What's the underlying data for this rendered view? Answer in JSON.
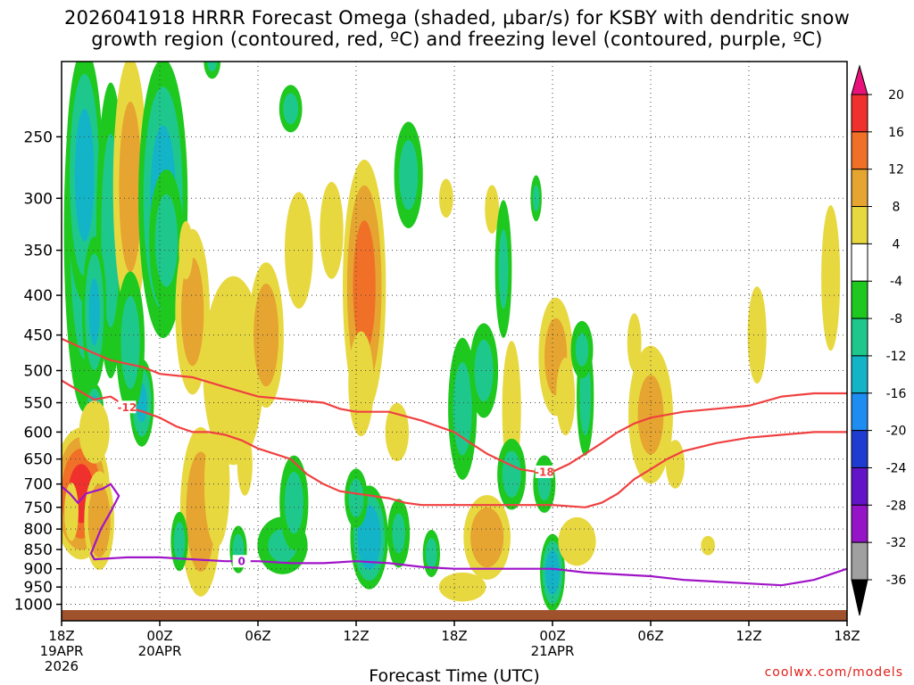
{
  "title": {
    "line1": "2026041918 HRRR Forecast Omega (shaded, µbar/s) for KSBY with dendritic snow",
    "line2": "growth region (contoured, red, ºC) and freezing level (contoured, purple, ºC)"
  },
  "credit": "coolwx.com/models",
  "chart_data": {
    "type": "heatmap",
    "xlabel": "Forecast Time (UTC)",
    "ylabel": "",
    "y_scale": "log",
    "y_inverted": true,
    "ylim": [
      1050,
      200
    ],
    "xlim": [
      0,
      48
    ],
    "x_unit": "forecast hours from 2026-04-19 18Z",
    "grid": true,
    "yticks": [
      250,
      300,
      350,
      400,
      450,
      500,
      550,
      600,
      650,
      700,
      750,
      800,
      850,
      900,
      950,
      1000
    ],
    "xticks": [
      {
        "x": 0,
        "label": "18Z",
        "line2": "19APR",
        "line3": "2026"
      },
      {
        "x": 6,
        "label": "00Z",
        "line2": "20APR",
        "line3": ""
      },
      {
        "x": 12,
        "label": "06Z",
        "line2": "",
        "line3": ""
      },
      {
        "x": 18,
        "label": "12Z",
        "line2": "",
        "line3": ""
      },
      {
        "x": 24,
        "label": "18Z",
        "line2": "",
        "line3": ""
      },
      {
        "x": 30,
        "label": "00Z",
        "line2": "21APR",
        "line3": ""
      },
      {
        "x": 36,
        "label": "06Z",
        "line2": "",
        "line3": ""
      },
      {
        "x": 42,
        "label": "12Z",
        "line2": "",
        "line3": ""
      },
      {
        "x": 48,
        "label": "18Z",
        "line2": "",
        "line3": ""
      }
    ],
    "colorbar": {
      "labels": [
        "20",
        "16",
        "12",
        "8",
        "4",
        "-4",
        "-8",
        "-12",
        "-16",
        "-20",
        "-24",
        "-28",
        "-32",
        "-36"
      ],
      "colors": [
        "#e8127a",
        "#f0302c",
        "#f07028",
        "#e6a430",
        "#e8d840",
        "#ffffff",
        "#1ec81e",
        "#1ec88c",
        "#14b4c8",
        "#1e8cf0",
        "#1e3cd2",
        "#6414c8",
        "#9614c8",
        "#a0a0a0",
        "#000000"
      ]
    },
    "omega_blobs": [
      {
        "x": 1.4,
        "p": 330,
        "sx": 0.7,
        "sy": 0.3,
        "v": -10
      },
      {
        "x": 1.4,
        "p": 280,
        "sx": 0.6,
        "sy": 0.2,
        "v": -13
      },
      {
        "x": 3.0,
        "p": 330,
        "sx": 0.5,
        "sy": 0.25,
        "v": -9
      },
      {
        "x": 4.2,
        "p": 290,
        "sx": 0.6,
        "sy": 0.22,
        "v": 9
      },
      {
        "x": 6.2,
        "p": 300,
        "sx": 0.8,
        "sy": 0.22,
        "v": -13
      },
      {
        "x": 6.4,
        "p": 340,
        "sx": 0.6,
        "sy": 0.12,
        "v": -9
      },
      {
        "x": 2.0,
        "p": 420,
        "sx": 0.4,
        "sy": 0.12,
        "v": -12
      },
      {
        "x": 2.0,
        "p": 560,
        "sx": 0.3,
        "sy": 0.04,
        "v": -13
      },
      {
        "x": 4.9,
        "p": 550,
        "sx": 0.4,
        "sy": 0.07,
        "v": -12
      },
      {
        "x": 4.2,
        "p": 460,
        "sx": 0.5,
        "sy": 0.12,
        "v": -9
      },
      {
        "x": 1.2,
        "p": 720,
        "sx": 0.9,
        "sy": 0.1,
        "v": 17
      },
      {
        "x": 2.3,
        "p": 780,
        "sx": 0.5,
        "sy": 0.08,
        "v": 11
      },
      {
        "x": 2.0,
        "p": 600,
        "sx": 0.6,
        "sy": 0.06,
        "v": 6
      },
      {
        "x": 8.0,
        "p": 420,
        "sx": 0.6,
        "sy": 0.14,
        "v": 9
      },
      {
        "x": 7.6,
        "p": 350,
        "sx": 0.3,
        "sy": 0.06,
        "v": 5
      },
      {
        "x": 8.5,
        "p": 760,
        "sx": 0.7,
        "sy": 0.14,
        "v": 10
      },
      {
        "x": 7.2,
        "p": 830,
        "sx": 0.3,
        "sy": 0.05,
        "v": -9
      },
      {
        "x": 10.5,
        "p": 500,
        "sx": 1.2,
        "sy": 0.18,
        "v": 6
      },
      {
        "x": 12.5,
        "p": 450,
        "sx": 0.6,
        "sy": 0.12,
        "v": 10
      },
      {
        "x": 14.5,
        "p": 350,
        "sx": 0.6,
        "sy": 0.12,
        "v": 5
      },
      {
        "x": 16.5,
        "p": 330,
        "sx": 0.5,
        "sy": 0.1,
        "v": 5
      },
      {
        "x": 11.2,
        "p": 660,
        "sx": 0.3,
        "sy": 0.06,
        "v": 6
      },
      {
        "x": 13.5,
        "p": 840,
        "sx": 0.9,
        "sy": 0.05,
        "v": -8
      },
      {
        "x": 10.8,
        "p": 850,
        "sx": 0.3,
        "sy": 0.04,
        "v": -9
      },
      {
        "x": 18.5,
        "p": 390,
        "sx": 0.7,
        "sy": 0.2,
        "v": 13
      },
      {
        "x": 18.3,
        "p": 520,
        "sx": 0.5,
        "sy": 0.1,
        "v": 6
      },
      {
        "x": 20.5,
        "p": 600,
        "sx": 0.5,
        "sy": 0.06,
        "v": 5
      },
      {
        "x": 21.2,
        "p": 280,
        "sx": 0.5,
        "sy": 0.09,
        "v": -9
      },
      {
        "x": 18.8,
        "p": 820,
        "sx": 0.6,
        "sy": 0.08,
        "v": -15
      },
      {
        "x": 20.6,
        "p": 810,
        "sx": 0.4,
        "sy": 0.06,
        "v": -8
      },
      {
        "x": 18.0,
        "p": 730,
        "sx": 0.4,
        "sy": 0.05,
        "v": -9
      },
      {
        "x": 24.5,
        "p": 560,
        "sx": 0.5,
        "sy": 0.12,
        "v": -9
      },
      {
        "x": 25.8,
        "p": 500,
        "sx": 0.5,
        "sy": 0.08,
        "v": -9
      },
      {
        "x": 26.0,
        "p": 820,
        "sx": 0.8,
        "sy": 0.07,
        "v": 10
      },
      {
        "x": 27.5,
        "p": 560,
        "sx": 0.4,
        "sy": 0.14,
        "v": 5
      },
      {
        "x": 24.5,
        "p": 950,
        "sx": 1.0,
        "sy": 0.03,
        "v": 5
      },
      {
        "x": 26.3,
        "p": 310,
        "sx": 0.3,
        "sy": 0.05,
        "v": 5
      },
      {
        "x": 27.0,
        "p": 370,
        "sx": 0.3,
        "sy": 0.12,
        "v": -8
      },
      {
        "x": 29.0,
        "p": 300,
        "sx": 0.2,
        "sy": 0.04,
        "v": -8
      },
      {
        "x": 30.2,
        "p": 480,
        "sx": 0.6,
        "sy": 0.1,
        "v": 9
      },
      {
        "x": 30.8,
        "p": 540,
        "sx": 0.4,
        "sy": 0.08,
        "v": 5
      },
      {
        "x": 32.0,
        "p": 540,
        "sx": 0.3,
        "sy": 0.1,
        "v": -9
      },
      {
        "x": 29.5,
        "p": 700,
        "sx": 0.4,
        "sy": 0.05,
        "v": -8
      },
      {
        "x": 30.0,
        "p": 910,
        "sx": 0.4,
        "sy": 0.06,
        "v": -14
      },
      {
        "x": 31.5,
        "p": 830,
        "sx": 0.8,
        "sy": 0.05,
        "v": 5
      },
      {
        "x": 36.0,
        "p": 570,
        "sx": 0.8,
        "sy": 0.12,
        "v": 8
      },
      {
        "x": 35.0,
        "p": 460,
        "sx": 0.3,
        "sy": 0.06,
        "v": 5
      },
      {
        "x": 37.5,
        "p": 660,
        "sx": 0.4,
        "sy": 0.05,
        "v": 5
      },
      {
        "x": 39.5,
        "p": 840,
        "sx": 0.3,
        "sy": 0.02,
        "v": 5
      },
      {
        "x": 42.5,
        "p": 450,
        "sx": 0.4,
        "sy": 0.1,
        "v": 5
      },
      {
        "x": 47.0,
        "p": 380,
        "sx": 0.4,
        "sy": 0.15,
        "v": 5
      },
      {
        "x": 23.5,
        "p": 300,
        "sx": 0.3,
        "sy": 0.04,
        "v": 5
      },
      {
        "x": 9.5,
        "p": 700,
        "sx": 0.5,
        "sy": 0.12,
        "v": 6
      },
      {
        "x": 14.2,
        "p": 740,
        "sx": 0.5,
        "sy": 0.08,
        "v": -9
      },
      {
        "x": 22.6,
        "p": 860,
        "sx": 0.3,
        "sy": 0.04,
        "v": -9
      },
      {
        "x": 27.5,
        "p": 680,
        "sx": 0.5,
        "sy": 0.06,
        "v": -9
      },
      {
        "x": 31.8,
        "p": 470,
        "sx": 0.4,
        "sy": 0.05,
        "v": -8
      },
      {
        "x": 9.2,
        "p": 200,
        "sx": 0.3,
        "sy": 0.03,
        "v": -8
      },
      {
        "x": 0.6,
        "p": 760,
        "sx": 0.3,
        "sy": 0.06,
        "v": 5
      },
      {
        "x": 14.0,
        "p": 230,
        "sx": 0.4,
        "sy": 0.04,
        "v": -9
      }
    ],
    "contours": [
      {
        "name": "-12",
        "color": "#f04040",
        "label": "-12",
        "label_at": 4,
        "points": [
          [
            0,
            515
          ],
          [
            1,
            530
          ],
          [
            2,
            545
          ],
          [
            3,
            540
          ],
          [
            4,
            557
          ],
          [
            5,
            565
          ],
          [
            6,
            575
          ],
          [
            7,
            590
          ],
          [
            8,
            600
          ],
          [
            9,
            600
          ],
          [
            10,
            605
          ],
          [
            11,
            615
          ],
          [
            12,
            630
          ],
          [
            14,
            650
          ],
          [
            15,
            680
          ],
          [
            16,
            700
          ],
          [
            17,
            715
          ],
          [
            18,
            720
          ],
          [
            19,
            725
          ],
          [
            20,
            730
          ],
          [
            21,
            740
          ],
          [
            22,
            745
          ],
          [
            24,
            745
          ],
          [
            26,
            745
          ],
          [
            28,
            745
          ],
          [
            30,
            745
          ],
          [
            32,
            750
          ],
          [
            33,
            740
          ],
          [
            34,
            720
          ],
          [
            35,
            690
          ],
          [
            36,
            670
          ],
          [
            37,
            650
          ],
          [
            38,
            635
          ],
          [
            40,
            620
          ],
          [
            42,
            610
          ],
          [
            44,
            605
          ],
          [
            46,
            600
          ],
          [
            48,
            600
          ]
        ]
      },
      {
        "name": "-18",
        "color": "#f04040",
        "label": "-18",
        "label_at": 29.5,
        "points": [
          [
            0,
            455
          ],
          [
            1,
            465
          ],
          [
            2,
            475
          ],
          [
            3,
            485
          ],
          [
            4,
            490
          ],
          [
            5,
            495
          ],
          [
            6,
            505
          ],
          [
            8,
            510
          ],
          [
            10,
            525
          ],
          [
            12,
            540
          ],
          [
            14,
            545
          ],
          [
            16,
            550
          ],
          [
            17,
            560
          ],
          [
            18,
            565
          ],
          [
            20,
            565
          ],
          [
            22,
            580
          ],
          [
            24,
            600
          ],
          [
            25,
            620
          ],
          [
            26,
            640
          ],
          [
            27,
            655
          ],
          [
            28,
            670
          ],
          [
            29,
            675
          ],
          [
            30,
            675
          ],
          [
            31,
            660
          ],
          [
            32,
            640
          ],
          [
            33,
            620
          ],
          [
            34,
            600
          ],
          [
            35,
            585
          ],
          [
            36,
            575
          ],
          [
            38,
            565
          ],
          [
            40,
            560
          ],
          [
            42,
            555
          ],
          [
            44,
            540
          ],
          [
            46,
            535
          ],
          [
            48,
            535
          ]
        ]
      },
      {
        "name": "0",
        "color": "#a014c8",
        "label": "0",
        "label_at": 11,
        "points": [
          [
            0,
            705
          ],
          [
            0.5,
            720
          ],
          [
            1,
            740
          ],
          [
            1.5,
            720
          ],
          [
            2.5,
            710
          ],
          [
            3,
            700
          ],
          [
            3.5,
            725
          ],
          [
            3,
            760
          ],
          [
            2.4,
            800
          ],
          [
            1.8,
            860
          ],
          [
            2,
            875
          ],
          [
            4,
            870
          ],
          [
            6,
            870
          ],
          [
            8,
            875
          ],
          [
            10,
            880
          ],
          [
            12,
            880
          ],
          [
            14,
            885
          ],
          [
            16,
            885
          ],
          [
            18,
            880
          ],
          [
            20,
            885
          ],
          [
            22,
            895
          ],
          [
            24,
            900
          ],
          [
            26,
            900
          ],
          [
            28,
            900
          ],
          [
            30,
            900
          ],
          [
            32,
            910
          ],
          [
            34,
            915
          ],
          [
            36,
            920
          ],
          [
            38,
            930
          ],
          [
            40,
            935
          ],
          [
            42,
            940
          ],
          [
            44,
            945
          ],
          [
            46,
            930
          ],
          [
            48,
            900
          ]
        ]
      }
    ]
  }
}
